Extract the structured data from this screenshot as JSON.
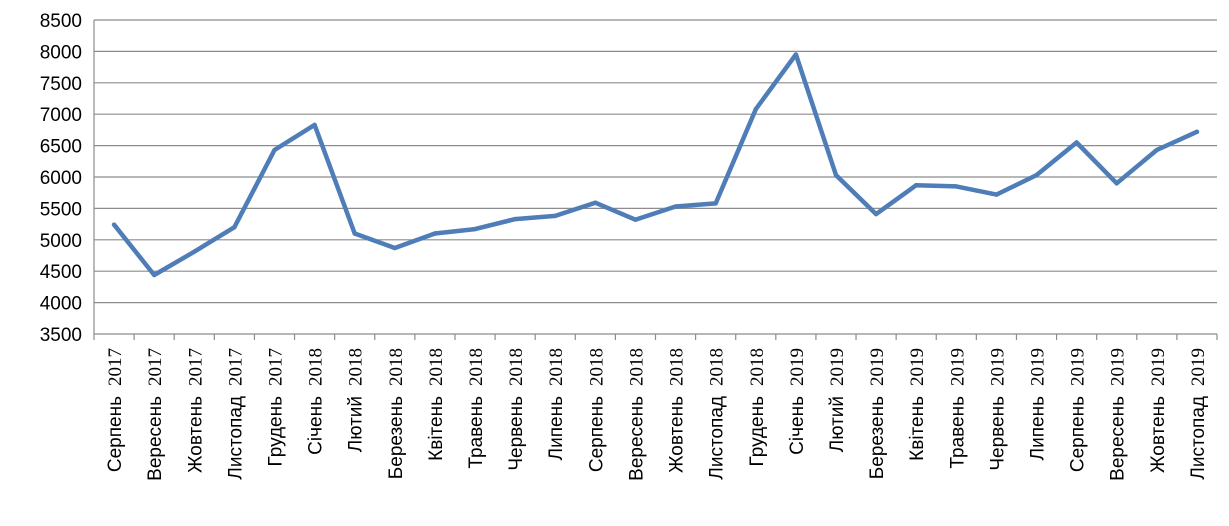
{
  "chart_data": {
    "type": "line",
    "title": "",
    "xlabel": "",
    "ylabel": "",
    "ylim": [
      3500,
      8500
    ],
    "ytick_step": 500,
    "yticks": [
      "3500",
      "4000",
      "4500",
      "5000",
      "5500",
      "6000",
      "6500",
      "7000",
      "7500",
      "8000",
      "8500"
    ],
    "grid": true,
    "legend": "none",
    "line_color": "#4f7db8",
    "categories": [
      {
        "month": "Серпень",
        "year": "2017"
      },
      {
        "month": "Вересень",
        "year": "2017"
      },
      {
        "month": "Жовтень",
        "year": "2017"
      },
      {
        "month": "Листопад",
        "year": "2017"
      },
      {
        "month": "Грудень",
        "year": "2017"
      },
      {
        "month": "Січень",
        "year": "2018"
      },
      {
        "month": "Лютий",
        "year": "2018"
      },
      {
        "month": "Березень",
        "year": "2018"
      },
      {
        "month": "Квітень",
        "year": "2018"
      },
      {
        "month": "Травень",
        "year": "2018"
      },
      {
        "month": "Червень",
        "year": "2018"
      },
      {
        "month": "Липень",
        "year": "2018"
      },
      {
        "month": "Серпень",
        "year": "2018"
      },
      {
        "month": "Вересень",
        "year": "2018"
      },
      {
        "month": "Жовтень",
        "year": "2018"
      },
      {
        "month": "Листопад",
        "year": "2018"
      },
      {
        "month": "Грудень",
        "year": "2018"
      },
      {
        "month": "Січень",
        "year": "2019"
      },
      {
        "month": "Лютий",
        "year": "2019"
      },
      {
        "month": "Березень",
        "year": "2019"
      },
      {
        "month": "Квітень",
        "year": "2019"
      },
      {
        "month": "Травень",
        "year": "2019"
      },
      {
        "month": "Червень",
        "year": "2019"
      },
      {
        "month": "Липень",
        "year": "2019"
      },
      {
        "month": "Серпень",
        "year": "2019"
      },
      {
        "month": "Вересень",
        "year": "2019"
      },
      {
        "month": "Жовтень",
        "year": "2019"
      },
      {
        "month": "Листопад",
        "year": "2019"
      }
    ],
    "series": [
      {
        "values": [
          5240,
          4440,
          4810,
          5200,
          6430,
          6830,
          5100,
          4870,
          5100,
          5170,
          5330,
          5380,
          5590,
          5320,
          5530,
          5580,
          7080,
          7950,
          6030,
          5410,
          5870,
          5850,
          5720,
          6030,
          6550,
          5900,
          6430,
          6720
        ]
      }
    ]
  }
}
